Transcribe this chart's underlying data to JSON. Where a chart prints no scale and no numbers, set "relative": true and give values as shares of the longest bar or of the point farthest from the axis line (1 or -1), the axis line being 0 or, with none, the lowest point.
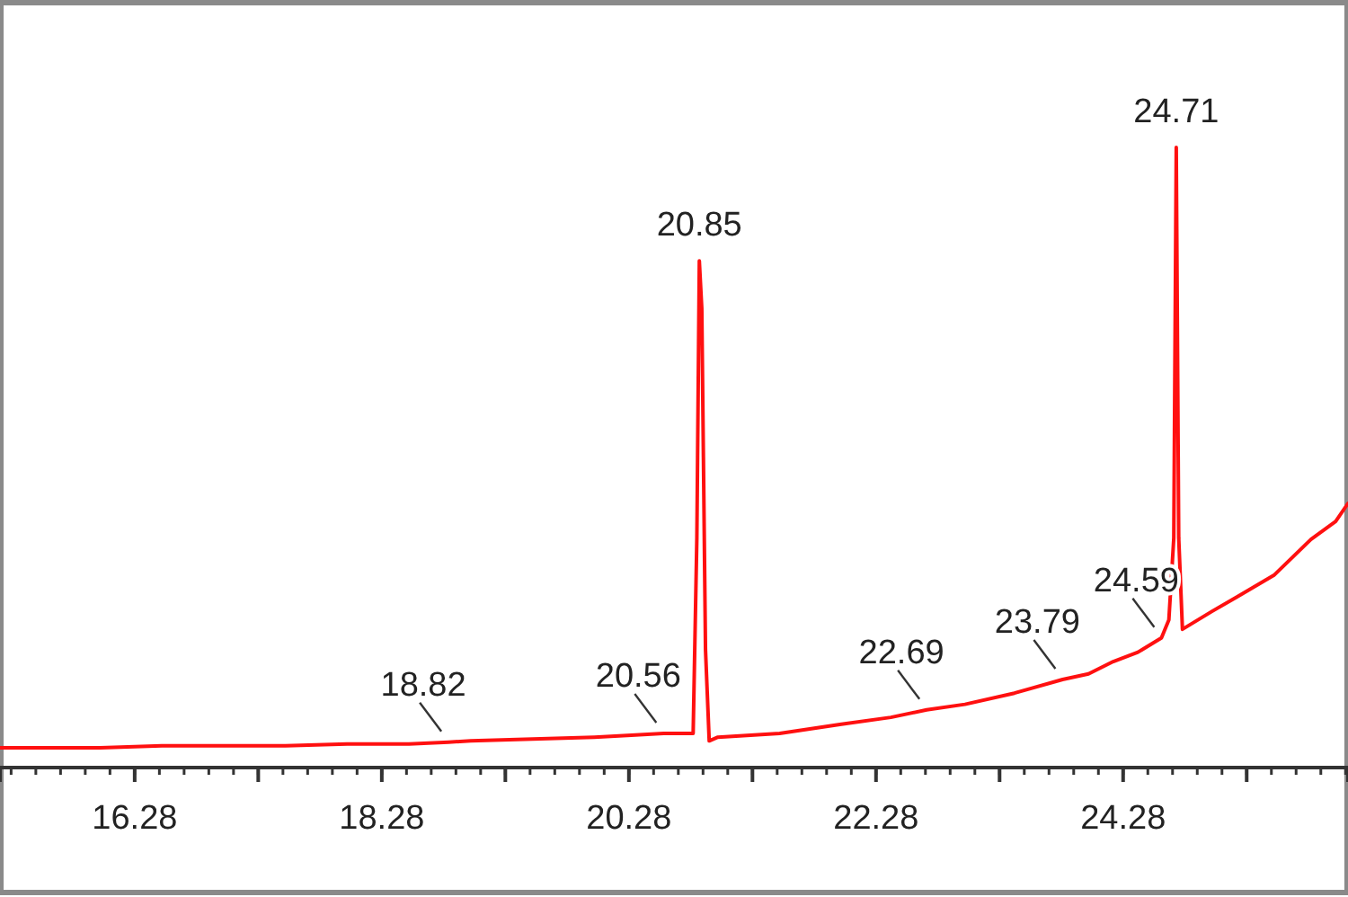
{
  "chart_data": {
    "type": "line",
    "relative": true,
    "x": [
      15.19,
      15.6,
      16.0,
      16.5,
      17.0,
      17.5,
      18.0,
      18.5,
      18.82,
      19.0,
      19.5,
      20.0,
      20.3,
      20.56,
      20.8,
      20.83,
      20.85,
      20.87,
      20.9,
      20.93,
      21.0,
      21.5,
      22.0,
      22.4,
      22.69,
      23.0,
      23.4,
      23.79,
      24.0,
      24.2,
      24.4,
      24.59,
      24.65,
      24.69,
      24.71,
      24.73,
      24.76,
      25.0,
      25.2,
      25.5,
      25.8,
      26.0,
      26.1
    ],
    "series": [
      {
        "color": "#ff1010",
        "values": [
          0.032,
          0.032,
          0.032,
          0.035,
          0.035,
          0.035,
          0.038,
          0.038,
          0.041,
          0.043,
          0.046,
          0.049,
          0.052,
          0.055,
          0.055,
          0.37,
          0.817,
          0.74,
          0.19,
          0.043,
          0.049,
          0.055,
          0.07,
          0.081,
          0.093,
          0.102,
          0.12,
          0.142,
          0.151,
          0.171,
          0.186,
          0.209,
          0.238,
          0.37,
          1,
          0.37,
          0.223,
          0.252,
          0.275,
          0.31,
          0.368,
          0.397,
          0.426
        ]
      }
    ],
    "xlim": [
      15.19,
      26.1
    ],
    "xticks": [
      16.28,
      {
        "value": 17.28,
        "label": null
      },
      18.28,
      {
        "value": 19.28,
        "label": null
      },
      20.28,
      {
        "value": 21.28,
        "label": null
      },
      22.28,
      {
        "value": 23.28,
        "label": null
      },
      24.28,
      {
        "value": 25.28,
        "label": null
      }
    ],
    "annotations": [
      {
        "text": "18.82",
        "x": 18.82,
        "y": 0.041
      },
      {
        "text": "20.56",
        "x": 20.56,
        "y": 0.055
      },
      {
        "text": "20.85",
        "x": 20.85,
        "y": 0.817
      },
      {
        "text": "22.69",
        "x": 22.69,
        "y": 0.093
      },
      {
        "text": "23.79",
        "x": 23.79,
        "y": 0.142
      },
      {
        "text": "24.59",
        "x": 24.59,
        "y": 0.209
      },
      {
        "text": "24.71",
        "x": 24.71,
        "y": 1
      }
    ]
  }
}
